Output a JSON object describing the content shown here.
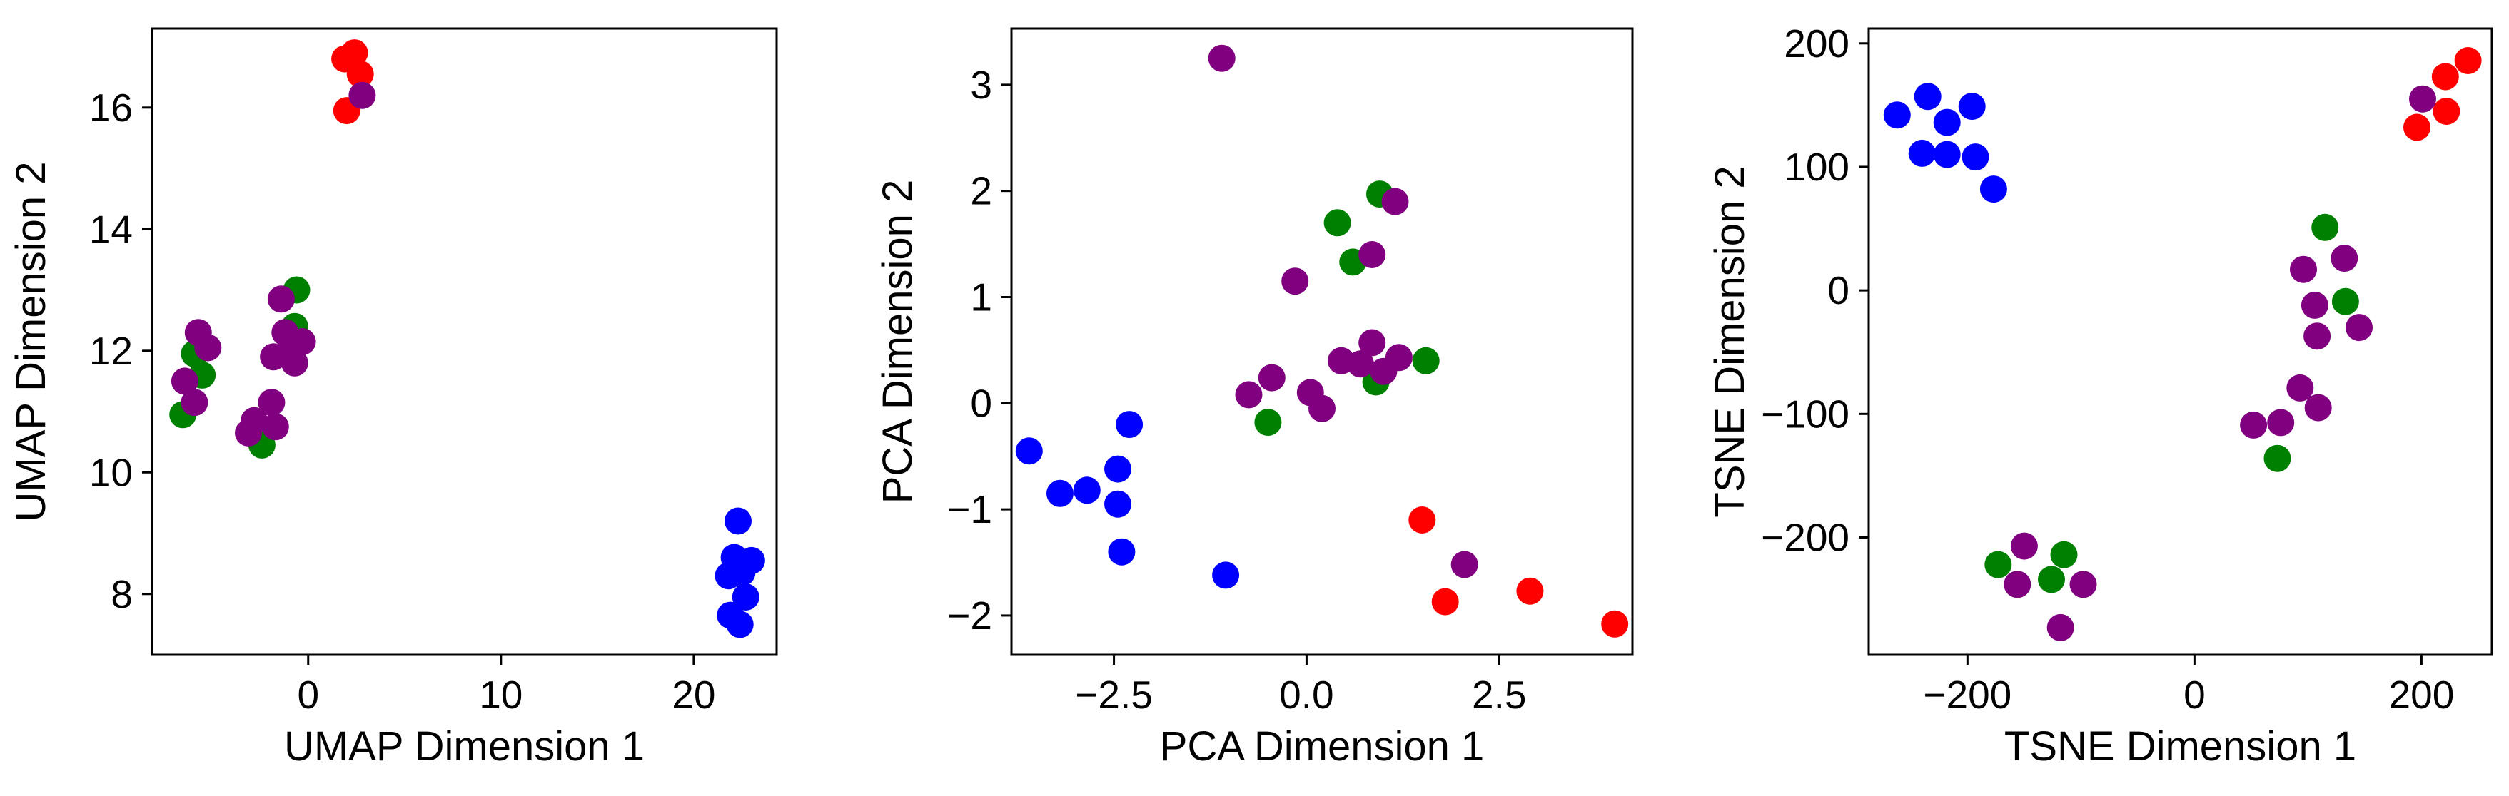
{
  "colors": {
    "blue": "#0000ff",
    "red": "#ff0000",
    "green": "#008000",
    "purple": "#800080",
    "frame": "#000000"
  },
  "chart_data": [
    {
      "type": "scatter",
      "title": "",
      "xlabel": "UMAP Dimension 1",
      "ylabel": "UMAP Dimension 2",
      "xlim": [
        -8.1,
        24.3
      ],
      "ylim": [
        7.0,
        17.3
      ],
      "xticks": [
        0,
        10,
        20
      ],
      "xtick_labels": [
        "0",
        "10",
        "20"
      ],
      "yticks": [
        8,
        10,
        12,
        14,
        16
      ],
      "ytick_labels": [
        "8",
        "10",
        "12",
        "14",
        "16"
      ],
      "grid": false,
      "points": [
        {
          "x": 22.3,
          "y": 9.2,
          "color": "blue"
        },
        {
          "x": 22.1,
          "y": 8.6,
          "color": "blue"
        },
        {
          "x": 21.8,
          "y": 8.3,
          "color": "blue"
        },
        {
          "x": 23.0,
          "y": 8.55,
          "color": "blue"
        },
        {
          "x": 22.5,
          "y": 8.35,
          "color": "blue"
        },
        {
          "x": 22.7,
          "y": 7.95,
          "color": "blue"
        },
        {
          "x": 21.9,
          "y": 7.65,
          "color": "blue"
        },
        {
          "x": 22.4,
          "y": 7.5,
          "color": "blue"
        },
        {
          "x": 1.9,
          "y": 16.8,
          "color": "red"
        },
        {
          "x": 2.4,
          "y": 16.9,
          "color": "red"
        },
        {
          "x": 2.7,
          "y": 16.55,
          "color": "red"
        },
        {
          "x": 2.0,
          "y": 15.95,
          "color": "red"
        },
        {
          "x": 2.8,
          "y": 16.2,
          "color": "purple"
        },
        {
          "x": -0.6,
          "y": 13.0,
          "color": "green"
        },
        {
          "x": -0.7,
          "y": 12.4,
          "color": "green"
        },
        {
          "x": -5.9,
          "y": 11.95,
          "color": "green"
        },
        {
          "x": -5.5,
          "y": 11.6,
          "color": "green"
        },
        {
          "x": -6.5,
          "y": 10.95,
          "color": "green"
        },
        {
          "x": -2.4,
          "y": 10.45,
          "color": "green"
        },
        {
          "x": -1.4,
          "y": 12.85,
          "color": "purple"
        },
        {
          "x": -5.7,
          "y": 12.3,
          "color": "purple"
        },
        {
          "x": -5.2,
          "y": 12.05,
          "color": "purple"
        },
        {
          "x": -1.2,
          "y": 12.3,
          "color": "purple"
        },
        {
          "x": -0.3,
          "y": 12.15,
          "color": "purple"
        },
        {
          "x": -1.8,
          "y": 11.9,
          "color": "purple"
        },
        {
          "x": -0.9,
          "y": 12.0,
          "color": "purple"
        },
        {
          "x": -0.7,
          "y": 11.8,
          "color": "purple"
        },
        {
          "x": -6.4,
          "y": 11.5,
          "color": "purple"
        },
        {
          "x": -5.9,
          "y": 11.15,
          "color": "purple"
        },
        {
          "x": -1.9,
          "y": 11.15,
          "color": "purple"
        },
        {
          "x": -2.8,
          "y": 10.85,
          "color": "purple"
        },
        {
          "x": -1.7,
          "y": 10.75,
          "color": "purple"
        },
        {
          "x": -3.1,
          "y": 10.65,
          "color": "purple"
        }
      ]
    },
    {
      "type": "scatter",
      "title": "",
      "xlabel": "PCA Dimension 1",
      "ylabel": "PCA Dimension 2",
      "xlim": [
        -3.83,
        4.23
      ],
      "ylim": [
        -2.37,
        3.53
      ],
      "xticks": [
        -2.5,
        0.0,
        2.5
      ],
      "xtick_labels": [
        "−2.5",
        "0.0",
        "2.5"
      ],
      "yticks": [
        -2,
        -1,
        0,
        1,
        2,
        3
      ],
      "ytick_labels": [
        "−2",
        "−1",
        "0",
        "1",
        "2",
        "3"
      ],
      "grid": false,
      "points": [
        {
          "x": -3.6,
          "y": -0.45,
          "color": "blue"
        },
        {
          "x": -3.2,
          "y": -0.85,
          "color": "blue"
        },
        {
          "x": -2.85,
          "y": -0.82,
          "color": "blue"
        },
        {
          "x": -2.45,
          "y": -0.62,
          "color": "blue"
        },
        {
          "x": -2.3,
          "y": -0.2,
          "color": "blue"
        },
        {
          "x": -2.45,
          "y": -0.95,
          "color": "blue"
        },
        {
          "x": -2.4,
          "y": -1.4,
          "color": "blue"
        },
        {
          "x": -1.05,
          "y": -1.62,
          "color": "blue"
        },
        {
          "x": 1.5,
          "y": -1.1,
          "color": "red"
        },
        {
          "x": 1.8,
          "y": -1.87,
          "color": "red"
        },
        {
          "x": 2.9,
          "y": -1.77,
          "color": "red"
        },
        {
          "x": 4.0,
          "y": -2.08,
          "color": "red"
        },
        {
          "x": 2.05,
          "y": -1.52,
          "color": "purple"
        },
        {
          "x": 0.4,
          "y": 1.7,
          "color": "green"
        },
        {
          "x": 0.95,
          "y": 1.97,
          "color": "green"
        },
        {
          "x": 0.6,
          "y": 1.33,
          "color": "green"
        },
        {
          "x": 1.55,
          "y": 0.4,
          "color": "green"
        },
        {
          "x": 0.9,
          "y": 0.2,
          "color": "green"
        },
        {
          "x": -0.5,
          "y": -0.18,
          "color": "green"
        },
        {
          "x": -1.1,
          "y": 3.25,
          "color": "purple"
        },
        {
          "x": 1.15,
          "y": 1.9,
          "color": "purple"
        },
        {
          "x": 0.85,
          "y": 1.4,
          "color": "purple"
        },
        {
          "x": -0.15,
          "y": 1.15,
          "color": "purple"
        },
        {
          "x": 0.45,
          "y": 0.4,
          "color": "purple"
        },
        {
          "x": 0.85,
          "y": 0.57,
          "color": "purple"
        },
        {
          "x": 0.7,
          "y": 0.37,
          "color": "purple"
        },
        {
          "x": 1.0,
          "y": 0.3,
          "color": "purple"
        },
        {
          "x": 1.2,
          "y": 0.43,
          "color": "purple"
        },
        {
          "x": -0.45,
          "y": 0.24,
          "color": "purple"
        },
        {
          "x": -0.75,
          "y": 0.08,
          "color": "purple"
        },
        {
          "x": 0.05,
          "y": 0.1,
          "color": "purple"
        },
        {
          "x": 0.2,
          "y": -0.05,
          "color": "purple"
        }
      ]
    },
    {
      "type": "scatter",
      "title": "",
      "xlabel": "TSNE Dimension 1",
      "ylabel": "TSNE Dimension 2",
      "xlim": [
        -287,
        262
      ],
      "ylim": [
        -295,
        212
      ],
      "xticks": [
        -200,
        0,
        200
      ],
      "xtick_labels": [
        "−200",
        "0",
        "200"
      ],
      "yticks": [
        -200,
        -100,
        0,
        100,
        200
      ],
      "ytick_labels": [
        "−200",
        "−100",
        "0",
        "100",
        "200"
      ],
      "grid": false,
      "points": [
        {
          "x": -262,
          "y": 142,
          "color": "blue"
        },
        {
          "x": -235,
          "y": 157,
          "color": "blue"
        },
        {
          "x": -218,
          "y": 136,
          "color": "blue"
        },
        {
          "x": -196,
          "y": 149,
          "color": "blue"
        },
        {
          "x": -240,
          "y": 111,
          "color": "blue"
        },
        {
          "x": -218,
          "y": 110,
          "color": "blue"
        },
        {
          "x": -193,
          "y": 108,
          "color": "blue"
        },
        {
          "x": -177,
          "y": 82,
          "color": "blue"
        },
        {
          "x": 196,
          "y": 132,
          "color": "red"
        },
        {
          "x": 222,
          "y": 145,
          "color": "red"
        },
        {
          "x": 221,
          "y": 173,
          "color": "red"
        },
        {
          "x": 241,
          "y": 186,
          "color": "red"
        },
        {
          "x": 201,
          "y": 155,
          "color": "purple"
        },
        {
          "x": 115,
          "y": 51,
          "color": "green"
        },
        {
          "x": 133,
          "y": -9,
          "color": "green"
        },
        {
          "x": 73,
          "y": -136,
          "color": "green"
        },
        {
          "x": -173,
          "y": -222,
          "color": "green"
        },
        {
          "x": -126,
          "y": -234,
          "color": "green"
        },
        {
          "x": -115,
          "y": -214,
          "color": "green"
        },
        {
          "x": 96,
          "y": 17,
          "color": "purple"
        },
        {
          "x": 132,
          "y": 26,
          "color": "purple"
        },
        {
          "x": 106,
          "y": -12,
          "color": "purple"
        },
        {
          "x": 145,
          "y": -30,
          "color": "purple"
        },
        {
          "x": 108,
          "y": -37,
          "color": "purple"
        },
        {
          "x": 93,
          "y": -79,
          "color": "purple"
        },
        {
          "x": 109,
          "y": -95,
          "color": "purple"
        },
        {
          "x": 76,
          "y": -107,
          "color": "purple"
        },
        {
          "x": 52,
          "y": -109,
          "color": "purple"
        },
        {
          "x": -150,
          "y": -207,
          "color": "purple"
        },
        {
          "x": -156,
          "y": -238,
          "color": "purple"
        },
        {
          "x": -98,
          "y": -238,
          "color": "purple"
        },
        {
          "x": -118,
          "y": -273,
          "color": "purple"
        }
      ]
    }
  ]
}
